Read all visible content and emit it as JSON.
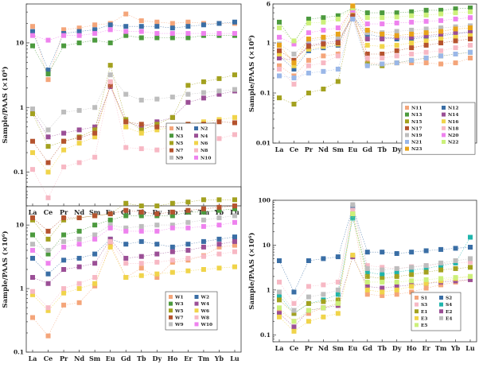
{
  "ylabel": "Sample/PAAS (×10⁶)",
  "chart_data": [
    {
      "type": "scatter",
      "scale": "log",
      "categories": [
        "La",
        "Ce",
        "Pr",
        "Nd",
        "Sm",
        "Eu",
        "Gd",
        "Tb",
        "Dy",
        "Ho",
        "Er",
        "Tm",
        "Yb",
        "Lu"
      ],
      "ylim": [
        0.03,
        40
      ],
      "yticks": [
        {
          "v": 0.1,
          "label": "0.1"
        },
        {
          "v": 1,
          "label": "1"
        },
        {
          "v": 10,
          "label": "10"
        }
      ],
      "legend_cols": 2,
      "series": [
        {
          "name": "N1",
          "color": "#f4a57a",
          "values": [
            18,
            2.7,
            16,
            17,
            19,
            20,
            28,
            22,
            21,
            20,
            21,
            20,
            20,
            20
          ]
        },
        {
          "name": "N2",
          "color": "#3a6ea5",
          "values": [
            15,
            3.8,
            14,
            15,
            16,
            19,
            18,
            18,
            18,
            17,
            18,
            19,
            20,
            21
          ]
        },
        {
          "name": "N3",
          "color": "#4c9a3e",
          "values": [
            9,
            3.3,
            9,
            10,
            11,
            10,
            13,
            12,
            12,
            12,
            12,
            13,
            13,
            13
          ]
        },
        {
          "name": "N4",
          "color": "#9b4f96",
          "values": [
            0.85,
            0.35,
            0.4,
            0.45,
            0.5,
            2.1,
            0.6,
            0.5,
            0.6,
            0.7,
            1.2,
            1.4,
            1.6,
            1.8
          ]
        },
        {
          "name": "N5",
          "color": "#a3a11f",
          "values": [
            0.8,
            0.25,
            0.3,
            0.35,
            0.45,
            4.5,
            0.65,
            0.45,
            0.55,
            0.7,
            2.2,
            2.5,
            2.8,
            3.2
          ]
        },
        {
          "name": "N6",
          "color": "#f0d44a",
          "values": [
            0.2,
            0.1,
            0.22,
            0.28,
            0.35,
            2.4,
            0.5,
            0.4,
            0.45,
            0.5,
            0.55,
            0.6,
            0.65,
            0.7
          ]
        },
        {
          "name": "N7",
          "color": "#b5532e",
          "values": [
            0.3,
            0.14,
            0.3,
            0.34,
            0.4,
            2.2,
            0.6,
            0.55,
            0.5,
            0.5,
            0.55,
            0.55,
            0.6,
            0.58
          ]
        },
        {
          "name": "N8",
          "color": "#f7b8c4",
          "values": [
            0.11,
            0.04,
            0.12,
            0.14,
            0.17,
            2.5,
            0.24,
            0.23,
            0.22,
            0.25,
            0.28,
            0.3,
            0.33,
            0.38
          ]
        },
        {
          "name": "N9",
          "color": "#bdbdbd",
          "values": [
            0.95,
            0.45,
            0.85,
            0.9,
            1.0,
            3.2,
            1.6,
            1.3,
            1.35,
            1.45,
            1.6,
            1.7,
            1.8,
            1.9
          ]
        },
        {
          "name": "N10",
          "color": "#ee82ee",
          "values": [
            13,
            11,
            13,
            13,
            14,
            16,
            15,
            15,
            14,
            14,
            14,
            14,
            14,
            14
          ]
        }
      ]
    },
    {
      "type": "scatter",
      "scale": "log",
      "categories": [
        "La",
        "Ce",
        "Pr",
        "Nd",
        "Sm",
        "Eu",
        "Gd",
        "Tb",
        "Dy",
        "Ho",
        "Er",
        "Tm",
        "Yb",
        "Lu"
      ],
      "ylim": [
        0.01,
        6
      ],
      "yticks": [
        {
          "v": 0.01,
          "label": "0.01"
        },
        {
          "v": 0.1,
          "label": "0.1"
        },
        {
          "v": 1,
          "label": "1"
        },
        {
          "v": 6,
          "label": "6"
        }
      ],
      "legend_cols": 2,
      "series": [
        {
          "name": "N11",
          "color": "#f4a57a",
          "values": [
            0.35,
            0.22,
            0.45,
            0.55,
            0.6,
            4.5,
            0.4,
            0.38,
            0.4,
            0.4,
            0.4,
            0.38,
            0.4,
            0.5
          ]
        },
        {
          "name": "N12",
          "color": "#3a6ea5",
          "values": [
            0.55,
            0.3,
            0.7,
            0.8,
            0.9,
            3.5,
            1.5,
            1.3,
            1.2,
            1.2,
            1.3,
            1.4,
            1.5,
            1.7
          ]
        },
        {
          "name": "N13",
          "color": "#4c9a3e",
          "values": [
            2.6,
            1.0,
            3.0,
            3.2,
            3.5,
            5.0,
            4.0,
            4.0,
            4.0,
            4.2,
            4.5,
            4.5,
            4.8,
            5.0
          ]
        },
        {
          "name": "N14",
          "color": "#9b4f96",
          "values": [
            0.5,
            0.45,
            0.9,
            1.0,
            1.1,
            3.5,
            1.2,
            1.2,
            1.3,
            1.3,
            1.4,
            1.5,
            1.6,
            1.6
          ]
        },
        {
          "name": "N15",
          "color": "#a3a11f",
          "values": [
            0.08,
            0.06,
            0.1,
            0.12,
            0.17,
            3.8,
            0.38,
            0.35,
            0.4,
            0.45,
            0.5,
            0.55,
            0.6,
            0.65
          ]
        },
        {
          "name": "N16",
          "color": "#f0d44a",
          "values": [
            0.6,
            0.35,
            0.75,
            0.85,
            0.95,
            4.0,
            0.9,
            0.85,
            0.9,
            1.0,
            1.1,
            1.2,
            1.3,
            1.4
          ]
        },
        {
          "name": "N17",
          "color": "#b5532e",
          "values": [
            0.7,
            0.45,
            0.85,
            0.95,
            1.0,
            3.5,
            0.6,
            0.6,
            0.7,
            0.8,
            0.9,
            1.0,
            1.1,
            1.2
          ]
        },
        {
          "name": "N18",
          "color": "#f7b8c4",
          "values": [
            0.3,
            0.15,
            0.35,
            0.4,
            0.55,
            3.0,
            0.5,
            0.5,
            0.55,
            0.6,
            0.65,
            0.7,
            0.8,
            0.9
          ]
        },
        {
          "name": "N19",
          "color": "#bdbdbd",
          "values": [
            0.95,
            0.6,
            1.1,
            1.2,
            1.3,
            4.5,
            1.6,
            1.6,
            1.7,
            1.8,
            1.9,
            2.0,
            2.1,
            2.2
          ]
        },
        {
          "name": "N20",
          "color": "#ee82ee",
          "values": [
            1.3,
            0.95,
            1.6,
            1.8,
            2.0,
            4.5,
            2.4,
            2.4,
            2.5,
            2.6,
            2.7,
            2.8,
            3.0,
            3.2
          ]
        },
        {
          "name": "N21",
          "color": "#9ab7e8",
          "values": [
            0.22,
            0.2,
            0.25,
            0.27,
            0.3,
            3.0,
            0.35,
            0.38,
            0.4,
            0.45,
            0.5,
            0.55,
            0.6,
            0.65
          ]
        },
        {
          "name": "N22",
          "color": "#ccf07a",
          "values": [
            2.0,
            1.1,
            2.5,
            2.6,
            3.0,
            5.0,
            3.2,
            3.2,
            3.3,
            3.5,
            3.6,
            3.8,
            4.0,
            4.2
          ]
        },
        {
          "name": "N23",
          "color": "#e8a31a",
          "values": [
            0.9,
            0.4,
            1.2,
            1.3,
            1.5,
            5.5,
            1.8,
            1.5,
            1.4,
            1.5,
            1.6,
            1.7,
            1.9,
            2.0
          ]
        }
      ]
    },
    {
      "type": "scatter",
      "scale": "log",
      "categories": [
        "La",
        "Ce",
        "Pr",
        "Nd",
        "Sm",
        "Eu",
        "Gd",
        "Tb",
        "Dy",
        "Ho",
        "Er",
        "Tm",
        "Yb",
        "Lu"
      ],
      "ylim": [
        0.1,
        40
      ],
      "yticks": [
        {
          "v": 0.1,
          "label": "0.1"
        },
        {
          "v": 1,
          "label": "1"
        },
        {
          "v": 10,
          "label": "10"
        }
      ],
      "legend_cols": 2,
      "series": [
        {
          "name": "W1",
          "color": "#f4a57a",
          "values": [
            0.35,
            0.18,
            0.55,
            0.6,
            1.1,
            5.0,
            1.5,
            2.1,
            1.5,
            2.6,
            2.8,
            3.3,
            4.5,
            4.8
          ]
        },
        {
          "name": "W2",
          "color": "#3a6ea5",
          "values": [
            3.0,
            1.7,
            2.8,
            3.0,
            3.5,
            6.0,
            5.0,
            5.5,
            5.0,
            4.5,
            5.0,
            5.5,
            6.0,
            6.5
          ]
        },
        {
          "name": "W3",
          "color": "#4c9a3e",
          "values": [
            7.0,
            3.5,
            7.0,
            8.0,
            10,
            12,
            14,
            14,
            14,
            14,
            16,
            16,
            17,
            18
          ]
        },
        {
          "name": "W4",
          "color": "#9b4f96",
          "values": [
            1.5,
            1.2,
            2.0,
            2.2,
            2.5,
            6.0,
            3.0,
            3.2,
            3.5,
            3.8,
            4.0,
            4.5,
            5.0,
            5.5
          ]
        },
        {
          "name": "W5",
          "color": "#a3a11f",
          "values": [
            12,
            6.0,
            12,
            13,
            14,
            15,
            22,
            20,
            20,
            22,
            23,
            25,
            25,
            25
          ]
        },
        {
          "name": "W6",
          "color": "#f0d44a",
          "values": [
            0.8,
            0.45,
            0.85,
            1.0,
            1.2,
            4.5,
            1.5,
            1.6,
            1.7,
            1.8,
            1.9,
            2.0,
            2.1,
            2.2
          ]
        },
        {
          "name": "W7",
          "color": "#b5532e",
          "values": [
            13,
            8.0,
            13,
            13,
            14,
            15,
            17,
            16,
            15,
            16,
            17,
            18,
            19,
            20
          ]
        },
        {
          "name": "W8",
          "color": "#f7b8c4",
          "values": [
            0.9,
            0.5,
            1.0,
            1.2,
            1.5,
            5.5,
            2.5,
            2.5,
            2.6,
            2.8,
            3.0,
            3.2,
            3.5,
            3.8
          ]
        },
        {
          "name": "W9",
          "color": "#bdbdbd",
          "values": [
            5.0,
            4.0,
            5.5,
            6.0,
            7.0,
            10,
            9.0,
            9.5,
            10,
            10,
            11,
            12,
            13,
            14
          ]
        },
        {
          "name": "W10",
          "color": "#ee82ee",
          "values": [
            4.0,
            2.5,
            4.5,
            5.0,
            6.0,
            9.0,
            8.0,
            8.0,
            8.0,
            9.0,
            9.0,
            9.5,
            10,
            11
          ]
        }
      ]
    },
    {
      "type": "scatter",
      "scale": "log",
      "categories": [
        "La",
        "Ce",
        "Pr",
        "Nd",
        "Sm",
        "Eu",
        "Gd",
        "Tb",
        "Dy",
        "Ho",
        "Er",
        "Tm",
        "Yb",
        "Lu"
      ],
      "ylim": [
        0.07,
        100
      ],
      "yticks": [
        {
          "v": 0.1,
          "label": "0.1"
        },
        {
          "v": 1,
          "label": "1"
        },
        {
          "v": 10,
          "label": "10"
        },
        {
          "v": 100,
          "label": "100"
        }
      ],
      "legend_cols": 2,
      "series": [
        {
          "name": "S1",
          "color": "#f4a57a",
          "values": [
            0.35,
            0.2,
            0.3,
            0.4,
            0.5,
            45,
            0.8,
            0.75,
            0.8,
            0.9,
            1.1,
            1.3,
            1.5,
            1.7
          ]
        },
        {
          "name": "S2",
          "color": "#3a6ea5",
          "values": [
            4.5,
            0.9,
            4.5,
            5.0,
            5.5,
            70,
            7.0,
            7.0,
            6.5,
            7.0,
            7.5,
            8.0,
            8.5,
            9.0
          ]
        },
        {
          "name": "S3",
          "color": "#f7b8c4",
          "values": [
            1.5,
            0.5,
            1.2,
            1.3,
            1.5,
            60,
            3.5,
            3.2,
            3.0,
            3.3,
            3.5,
            3.8,
            4.0,
            4.2
          ]
        },
        {
          "name": "S4",
          "color": "#1fb5ac",
          "values": [
            0.75,
            0.3,
            0.5,
            0.6,
            0.8,
            40,
            2.5,
            2.2,
            2.5,
            2.8,
            3.0,
            3.5,
            4.0,
            15
          ]
        },
        {
          "name": "E1",
          "color": "#a3a11f",
          "values": [
            0.6,
            0.3,
            0.5,
            0.55,
            0.6,
            50,
            2.0,
            1.8,
            2.0,
            2.2,
            2.5,
            2.8,
            3.0,
            3.2
          ]
        },
        {
          "name": "E2",
          "color": "#9b4f96",
          "values": [
            0.3,
            0.15,
            0.35,
            0.4,
            0.45,
            5.5,
            1.2,
            1.1,
            1.2,
            1.3,
            1.4,
            1.5,
            1.6,
            1.7
          ]
        },
        {
          "name": "E3",
          "color": "#f0d44a",
          "values": [
            0.25,
            0.12,
            0.2,
            0.25,
            0.3,
            6.0,
            1.0,
            0.9,
            1.0,
            1.2,
            1.4,
            1.6,
            1.8,
            2.0
          ]
        },
        {
          "name": "E4",
          "color": "#bdbdbd",
          "values": [
            0.9,
            0.35,
            0.7,
            0.8,
            1.0,
            80,
            3.0,
            2.8,
            3.0,
            3.2,
            3.5,
            4.0,
            4.5,
            5.0
          ]
        },
        {
          "name": "E5",
          "color": "#ccf07a",
          "values": [
            0.4,
            0.2,
            0.35,
            0.4,
            0.5,
            50,
            1.5,
            1.5,
            1.5,
            1.6,
            1.7,
            1.8,
            1.9,
            2.0
          ]
        }
      ]
    }
  ]
}
